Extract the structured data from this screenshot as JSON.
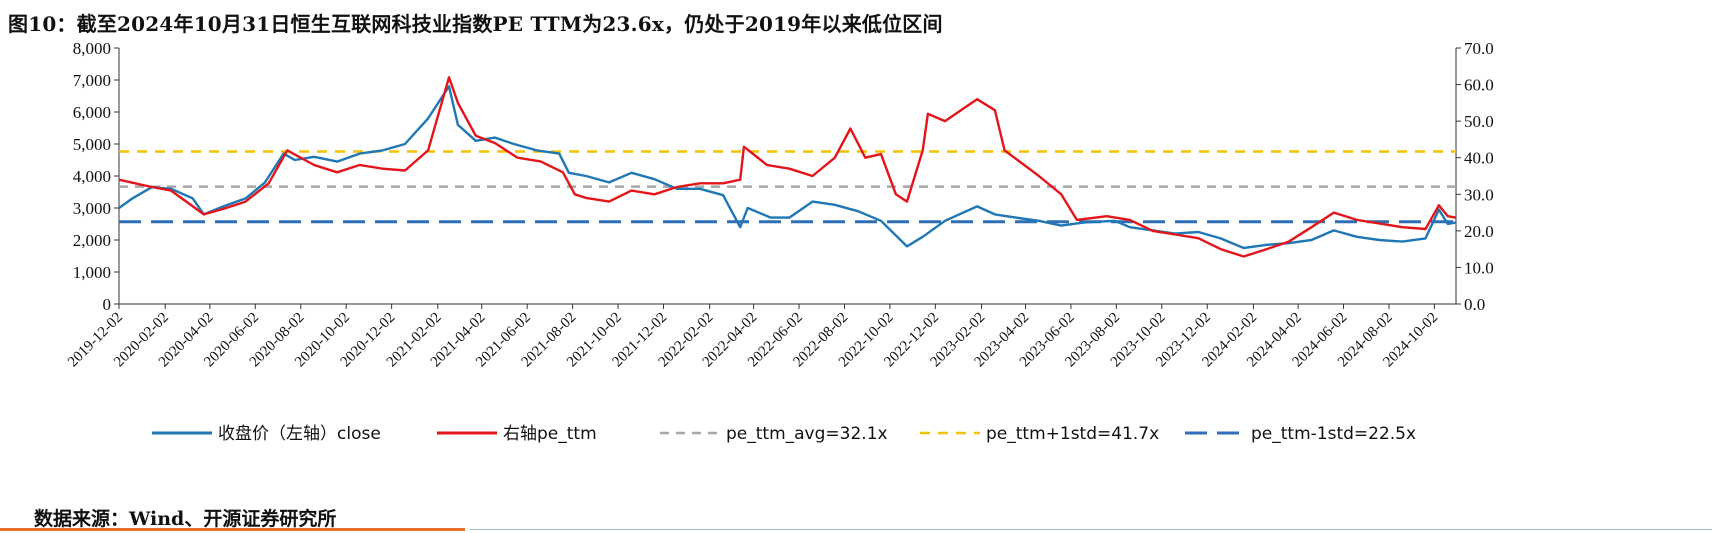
{
  "header": {
    "title": "图10：截至2024年10月31日恒生互联网科技业指数PE TTM为23.6x，仍处于2019年以来低位区间"
  },
  "footer": {
    "source": "数据来源：Wind、开源证券研究所"
  },
  "colors": {
    "close": "#1f77b4",
    "pe_ttm": "#e3151a",
    "avg": "#a6a6a6",
    "plus1": "#f2c200",
    "minus1": "#2e6fb5"
  },
  "chart_data": {
    "type": "line",
    "title": "截至2024年10月31日恒生互联网科技业指数PE TTM为23.6x，仍处于2019年以来低位区间",
    "left_axis": {
      "range": [
        0,
        8000
      ],
      "ticks": [
        "0",
        "1,000",
        "2,000",
        "3,000",
        "4,000",
        "5,000",
        "6,000",
        "7,000",
        "8,000"
      ]
    },
    "right_axis": {
      "range": [
        0,
        70
      ],
      "ticks": [
        "0.0",
        "10.0",
        "20.0",
        "30.0",
        "40.0",
        "50.0",
        "60.0",
        "70.0"
      ]
    },
    "x_ticks": [
      "2019-12-02",
      "2020-02-02",
      "2020-04-02",
      "2020-06-02",
      "2020-08-02",
      "2020-10-02",
      "2020-12-02",
      "2021-02-02",
      "2021-04-02",
      "2021-06-02",
      "2021-08-02",
      "2021-10-02",
      "2021-12-02",
      "2022-02-02",
      "2022-04-02",
      "2022-06-02",
      "2022-08-02",
      "2022-10-02",
      "2022-12-02",
      "2023-02-02",
      "2023-04-02",
      "2023-06-02",
      "2023-08-02",
      "2023-10-02",
      "2023-12-02",
      "2024-02-02",
      "2024-04-02",
      "2024-06-02",
      "2024-08-02",
      "2024-10-02"
    ],
    "legend": {
      "position": "bottom",
      "items": [
        "收盘价（左轴）close",
        "右轴pe_ttm",
        "pe_ttm_avg=32.1x",
        "pe_ttm+1std=41.7x",
        "pe_ttm-1std=22.5x"
      ]
    },
    "series": [
      {
        "name": "收盘价（左轴）close",
        "axis": "left",
        "points": [
          [
            "2019-12-02",
            3000
          ],
          [
            "2019-12-20",
            3300
          ],
          [
            "2020-01-15",
            3650
          ],
          [
            "2020-02-10",
            3600
          ],
          [
            "2020-03-10",
            3300
          ],
          [
            "2020-03-25",
            2800
          ],
          [
            "2020-04-20",
            3050
          ],
          [
            "2020-05-20",
            3300
          ],
          [
            "2020-06-15",
            3800
          ],
          [
            "2020-07-10",
            4700
          ],
          [
            "2020-07-25",
            4500
          ],
          [
            "2020-08-20",
            4600
          ],
          [
            "2020-09-20",
            4450
          ],
          [
            "2020-10-20",
            4700
          ],
          [
            "2020-11-20",
            4800
          ],
          [
            "2020-12-20",
            5000
          ],
          [
            "2021-01-20",
            5800
          ],
          [
            "2021-02-17",
            6800
          ],
          [
            "2021-03-01",
            5600
          ],
          [
            "2021-03-25",
            5100
          ],
          [
            "2021-04-20",
            5200
          ],
          [
            "2021-05-15",
            5000
          ],
          [
            "2021-06-15",
            4800
          ],
          [
            "2021-07-15",
            4700
          ],
          [
            "2021-07-28",
            4100
          ],
          [
            "2021-08-20",
            4000
          ],
          [
            "2021-09-20",
            3800
          ],
          [
            "2021-10-20",
            4100
          ],
          [
            "2021-11-20",
            3900
          ],
          [
            "2021-12-20",
            3600
          ],
          [
            "2022-01-20",
            3600
          ],
          [
            "2022-02-20",
            3400
          ],
          [
            "2022-03-15",
            2400
          ],
          [
            "2022-03-25",
            3000
          ],
          [
            "2022-04-25",
            2700
          ],
          [
            "2022-05-20",
            2700
          ],
          [
            "2022-06-20",
            3200
          ],
          [
            "2022-07-20",
            3100
          ],
          [
            "2022-08-20",
            2900
          ],
          [
            "2022-09-20",
            2600
          ],
          [
            "2022-10-25",
            1800
          ],
          [
            "2022-11-15",
            2100
          ],
          [
            "2022-12-15",
            2600
          ],
          [
            "2023-01-27",
            3050
          ],
          [
            "2023-02-20",
            2800
          ],
          [
            "2023-03-20",
            2700
          ],
          [
            "2023-04-20",
            2600
          ],
          [
            "2023-05-20",
            2450
          ],
          [
            "2023-06-20",
            2550
          ],
          [
            "2023-07-31",
            2600
          ],
          [
            "2023-08-20",
            2400
          ],
          [
            "2023-09-20",
            2300
          ],
          [
            "2023-10-20",
            2200
          ],
          [
            "2023-11-20",
            2250
          ],
          [
            "2023-12-20",
            2050
          ],
          [
            "2024-01-20",
            1750
          ],
          [
            "2024-02-20",
            1850
          ],
          [
            "2024-03-20",
            1900
          ],
          [
            "2024-04-20",
            2000
          ],
          [
            "2024-05-20",
            2300
          ],
          [
            "2024-06-20",
            2100
          ],
          [
            "2024-07-20",
            2000
          ],
          [
            "2024-08-20",
            1950
          ],
          [
            "2024-09-20",
            2050
          ],
          [
            "2024-10-08",
            2950
          ],
          [
            "2024-10-20",
            2500
          ],
          [
            "2024-10-31",
            2550
          ]
        ]
      },
      {
        "name": "右轴pe_ttm",
        "axis": "right",
        "points": [
          [
            "2019-12-02",
            34
          ],
          [
            "2020-01-15",
            32
          ],
          [
            "2020-02-10",
            31
          ],
          [
            "2020-03-25",
            24.5
          ],
          [
            "2020-04-20",
            26
          ],
          [
            "2020-05-20",
            28
          ],
          [
            "2020-06-20",
            33
          ],
          [
            "2020-07-15",
            42
          ],
          [
            "2020-08-20",
            38
          ],
          [
            "2020-09-20",
            36
          ],
          [
            "2020-10-20",
            38
          ],
          [
            "2020-11-20",
            37
          ],
          [
            "2020-12-20",
            36.5
          ],
          [
            "2021-01-20",
            42
          ],
          [
            "2021-02-17",
            62
          ],
          [
            "2021-03-01",
            55
          ],
          [
            "2021-03-25",
            46
          ],
          [
            "2021-04-20",
            44
          ],
          [
            "2021-05-20",
            40
          ],
          [
            "2021-06-20",
            39
          ],
          [
            "2021-07-20",
            36
          ],
          [
            "2021-08-05",
            30
          ],
          [
            "2021-08-20",
            29
          ],
          [
            "2021-09-20",
            28
          ],
          [
            "2021-10-20",
            31
          ],
          [
            "2021-11-20",
            30
          ],
          [
            "2021-12-20",
            32
          ],
          [
            "2022-01-20",
            33
          ],
          [
            "2022-02-20",
            33
          ],
          [
            "2022-03-15",
            34
          ],
          [
            "2022-03-20",
            43
          ],
          [
            "2022-04-20",
            38
          ],
          [
            "2022-05-20",
            37
          ],
          [
            "2022-06-20",
            35
          ],
          [
            "2022-07-20",
            40
          ],
          [
            "2022-08-10",
            48
          ],
          [
            "2022-08-30",
            40
          ],
          [
            "2022-09-20",
            41
          ],
          [
            "2022-10-10",
            30
          ],
          [
            "2022-10-25",
            28
          ],
          [
            "2022-11-15",
            42
          ],
          [
            "2022-11-22",
            52
          ],
          [
            "2022-12-15",
            50
          ],
          [
            "2023-01-27",
            56
          ],
          [
            "2023-02-20",
            53
          ],
          [
            "2023-03-05",
            42
          ],
          [
            "2023-04-20",
            35
          ],
          [
            "2023-05-20",
            30
          ],
          [
            "2023-06-10",
            23
          ],
          [
            "2023-07-20",
            24
          ],
          [
            "2023-08-20",
            23
          ],
          [
            "2023-09-20",
            20
          ],
          [
            "2023-10-20",
            19
          ],
          [
            "2023-11-20",
            18
          ],
          [
            "2023-12-20",
            15
          ],
          [
            "2024-01-20",
            13
          ],
          [
            "2024-02-20",
            15
          ],
          [
            "2024-03-20",
            17
          ],
          [
            "2024-04-20",
            21
          ],
          [
            "2024-05-20",
            25
          ],
          [
            "2024-06-20",
            23
          ],
          [
            "2024-07-20",
            22
          ],
          [
            "2024-08-20",
            21
          ],
          [
            "2024-09-20",
            20.5
          ],
          [
            "2024-10-08",
            27
          ],
          [
            "2024-10-20",
            24
          ],
          [
            "2024-10-31",
            23.6
          ]
        ]
      }
    ],
    "reference_lines": [
      {
        "name": "pe_ttm_avg=32.1x",
        "axis": "right",
        "value": 32.1,
        "style": "dashed"
      },
      {
        "name": "pe_ttm+1std=41.7x",
        "axis": "right",
        "value": 41.7,
        "style": "dashed"
      },
      {
        "name": "pe_ttm-1std=22.5x",
        "axis": "right",
        "value": 22.5,
        "style": "long-dashed"
      }
    ],
    "grid": false
  }
}
